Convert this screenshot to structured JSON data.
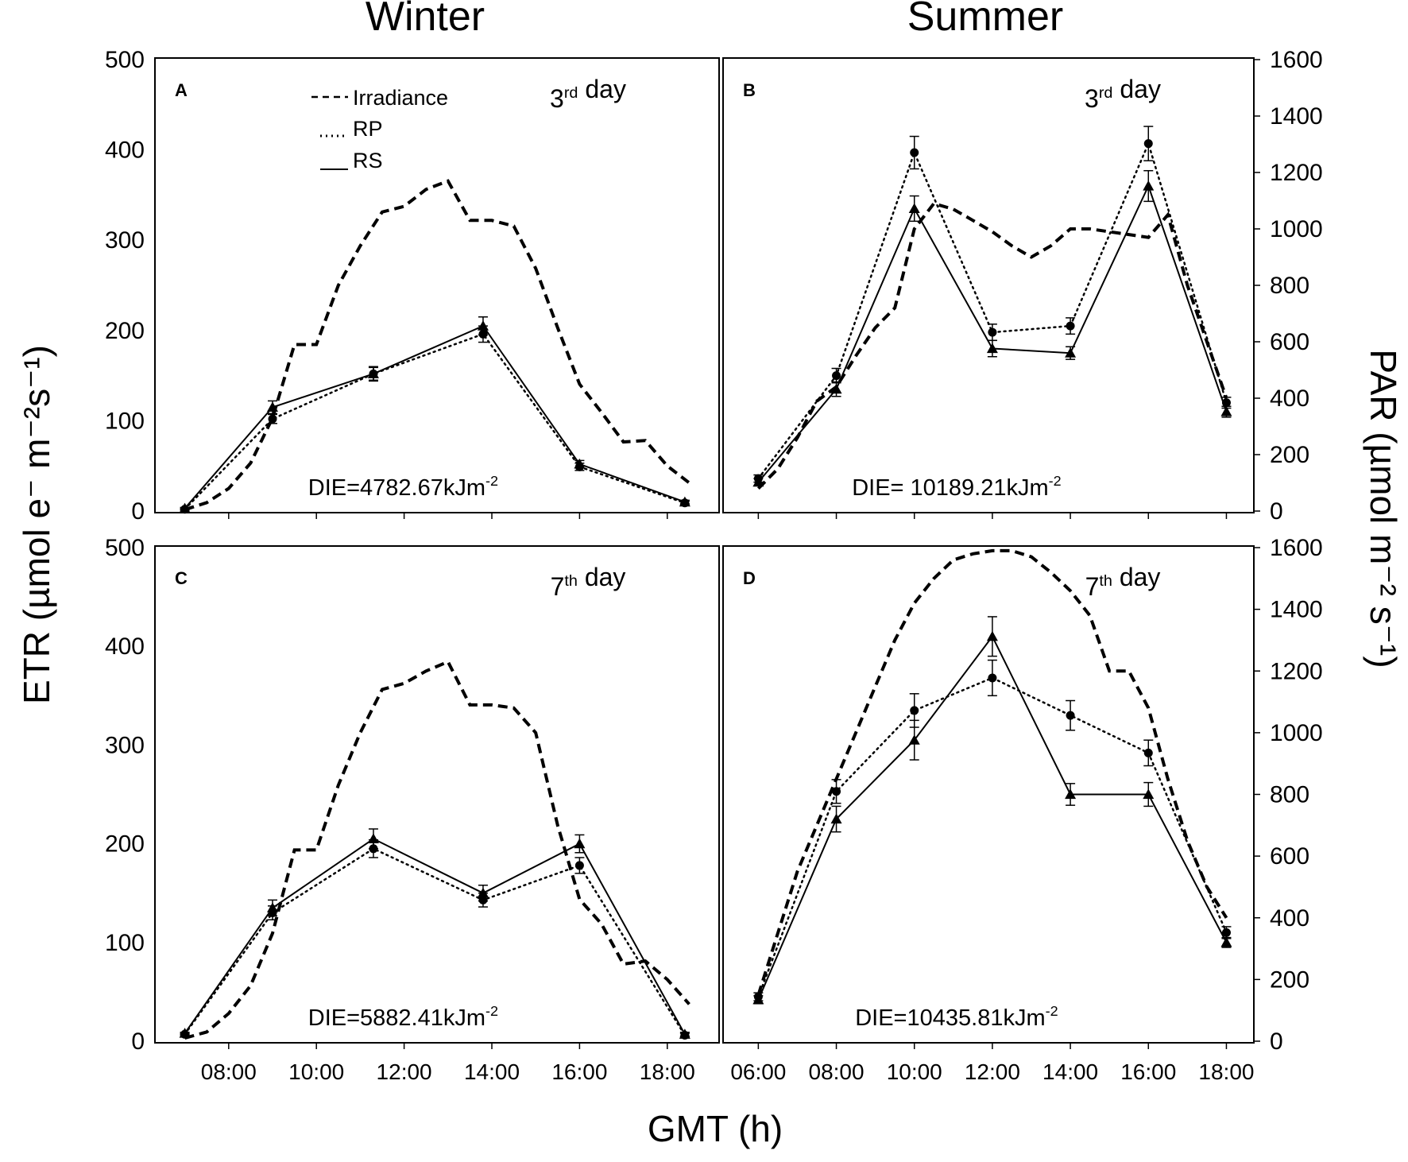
{
  "figure": {
    "column_titles": [
      "Winter",
      "Summer"
    ],
    "xlabel": "GMT (h)",
    "ylabel_left": "ETR (µmol e⁻ m⁻²s⁻¹)",
    "ylabel_right": "PAR (µmol m⁻² s⁻¹)"
  },
  "legend": {
    "items": [
      {
        "label": "Irradiance",
        "style": "dashed"
      },
      {
        "label": "RP",
        "style": "dotted"
      },
      {
        "label": "RS",
        "style": "solid"
      }
    ]
  },
  "chart_data": [
    {
      "type": "line",
      "panel": "A",
      "day_label": "3rd day",
      "die_label": "DIE=4782.67kJm-2",
      "x_ticks": [
        "08:00",
        "10:00",
        "12:00",
        "14:00",
        "16:00",
        "18:00"
      ],
      "xlim": [
        6.5,
        19.0
      ],
      "ylim": [
        0,
        500
      ],
      "y2lim": [
        0,
        1600
      ],
      "y_ticks": [
        0,
        100,
        200,
        300,
        400,
        500
      ],
      "y2_ticks": [
        0,
        200,
        400,
        600,
        800,
        1000,
        1200,
        1400,
        1600
      ],
      "series": [
        {
          "name": "RS",
          "axis": "left",
          "marker": "triangle",
          "x": [
            7.0,
            9.0,
            11.3,
            13.8,
            16.0,
            18.4
          ],
          "y": [
            3,
            115,
            152,
            205,
            52,
            10
          ],
          "err": [
            1,
            7,
            8,
            10,
            4,
            2
          ]
        },
        {
          "name": "RP",
          "axis": "left",
          "marker": "circle",
          "x": [
            7.0,
            9.0,
            11.3,
            13.8,
            16.0,
            18.4
          ],
          "y": [
            2,
            102,
            152,
            196,
            49,
            9
          ],
          "err": [
            1,
            5,
            7,
            9,
            4,
            2
          ]
        },
        {
          "name": "Irradiance",
          "axis": "right",
          "x": [
            7.0,
            7.5,
            8.0,
            8.5,
            9.0,
            9.5,
            10.0,
            10.5,
            11.0,
            11.5,
            12.0,
            12.5,
            13.0,
            13.5,
            14.0,
            14.5,
            15.0,
            15.5,
            16.0,
            16.5,
            17.0,
            17.5,
            18.0,
            18.5
          ],
          "y": [
            5,
            30,
            80,
            170,
            330,
            590,
            590,
            800,
            940,
            1060,
            1080,
            1140,
            1170,
            1030,
            1030,
            1010,
            860,
            650,
            450,
            350,
            245,
            250,
            160,
            100
          ]
        }
      ]
    },
    {
      "type": "line",
      "panel": "B",
      "day_label": "3rd day",
      "die_label": "DIE= 10189.21kJm-2",
      "x_ticks": [
        "06:00",
        "08:00",
        "10:00",
        "12:00",
        "14:00",
        "16:00",
        "18:00"
      ],
      "xlim": [
        5.3,
        18.5
      ],
      "ylim": [
        0,
        500
      ],
      "y2lim": [
        0,
        1600
      ],
      "y_ticks": [
        0,
        100,
        200,
        300,
        400,
        500
      ],
      "y2_ticks": [
        0,
        200,
        400,
        600,
        800,
        1000,
        1200,
        1400,
        1600
      ],
      "series": [
        {
          "name": "RS",
          "axis": "left",
          "marker": "triangle",
          "x": [
            6.0,
            8.0,
            10.0,
            12.0,
            14.0,
            16.0,
            18.0
          ],
          "y": [
            32,
            135,
            335,
            180,
            175,
            360,
            110
          ],
          "err": [
            4,
            8,
            14,
            9,
            7,
            17,
            6
          ]
        },
        {
          "name": "RP",
          "axis": "left",
          "marker": "circle",
          "x": [
            6.0,
            8.0,
            10.0,
            12.0,
            14.0,
            16.0,
            18.0
          ],
          "y": [
            36,
            150,
            397,
            198,
            205,
            407,
            120
          ],
          "err": [
            4,
            8,
            18,
            9,
            9,
            19,
            6
          ]
        },
        {
          "name": "Irradiance",
          "axis": "right",
          "x": [
            6.0,
            6.5,
            7.0,
            7.5,
            8.0,
            8.5,
            9.0,
            9.5,
            10.0,
            10.5,
            11.0,
            11.5,
            12.0,
            12.5,
            13.0,
            13.5,
            14.0,
            14.5,
            15.0,
            15.5,
            16.0,
            16.5,
            17.0,
            17.5,
            18.0
          ],
          "y": [
            80,
            150,
            260,
            390,
            440,
            550,
            650,
            720,
            1000,
            1090,
            1070,
            1030,
            990,
            940,
            900,
            940,
            1000,
            1000,
            990,
            980,
            970,
            1050,
            800,
            600,
            400
          ]
        }
      ]
    },
    {
      "type": "line",
      "panel": "C",
      "day_label": "7th day",
      "die_label": "DIE=5882.41kJm-2",
      "x_ticks": [
        "08:00",
        "10:00",
        "12:00",
        "14:00",
        "16:00",
        "18:00"
      ],
      "xlim": [
        6.5,
        19.0
      ],
      "ylim": [
        0,
        500
      ],
      "y2lim": [
        0,
        1600
      ],
      "y_ticks": [
        0,
        100,
        200,
        300,
        400,
        500
      ],
      "y2_ticks": [
        0,
        200,
        400,
        600,
        800,
        1000,
        1200,
        1400,
        1600
      ],
      "series": [
        {
          "name": "RS",
          "axis": "left",
          "marker": "triangle",
          "x": [
            7.0,
            9.0,
            11.3,
            13.8,
            16.0,
            18.4
          ],
          "y": [
            8,
            135,
            205,
            150,
            200,
            7
          ],
          "err": [
            1,
            8,
            10,
            8,
            9,
            2
          ]
        },
        {
          "name": "RP",
          "axis": "left",
          "marker": "circle",
          "x": [
            7.0,
            9.0,
            11.3,
            13.8,
            16.0,
            18.4
          ],
          "y": [
            7,
            130,
            195,
            143,
            178,
            6
          ],
          "err": [
            1,
            7,
            9,
            7,
            8,
            2
          ]
        },
        {
          "name": "Irradiance",
          "axis": "right",
          "x": [
            7.0,
            7.5,
            8.0,
            8.5,
            9.0,
            9.5,
            10.0,
            10.5,
            11.0,
            11.5,
            12.0,
            12.5,
            13.0,
            13.5,
            14.0,
            14.5,
            15.0,
            15.5,
            16.0,
            16.5,
            17.0,
            17.5,
            18.0,
            18.5
          ],
          "y": [
            10,
            30,
            90,
            180,
            350,
            620,
            620,
            830,
            1000,
            1140,
            1160,
            1200,
            1230,
            1090,
            1090,
            1080,
            1000,
            700,
            460,
            380,
            250,
            260,
            200,
            120
          ]
        }
      ]
    },
    {
      "type": "line",
      "panel": "D",
      "day_label": "7th day",
      "die_label": "DIE=10435.81kJm-2",
      "x_ticks": [
        "06:00",
        "08:00",
        "10:00",
        "12:00",
        "14:00",
        "16:00",
        "18:00"
      ],
      "xlim": [
        5.3,
        18.5
      ],
      "ylim": [
        0,
        500
      ],
      "y2lim": [
        0,
        1600
      ],
      "y_ticks": [
        0,
        100,
        200,
        300,
        400,
        500
      ],
      "y2_ticks": [
        0,
        200,
        400,
        600,
        800,
        1000,
        1200,
        1400,
        1600
      ],
      "series": [
        {
          "name": "RS",
          "axis": "left",
          "marker": "triangle",
          "x": [
            6.0,
            8.0,
            10.0,
            12.0,
            14.0,
            16.0,
            18.0
          ],
          "y": [
            42,
            225,
            305,
            410,
            250,
            250,
            100
          ],
          "err": [
            4,
            13,
            20,
            20,
            11,
            12,
            5
          ]
        },
        {
          "name": "RP",
          "axis": "left",
          "marker": "circle",
          "x": [
            6.0,
            8.0,
            10.0,
            12.0,
            14.0,
            16.0,
            18.0
          ],
          "y": [
            45,
            253,
            335,
            368,
            330,
            292,
            110
          ],
          "err": [
            4,
            12,
            17,
            18,
            15,
            13,
            6
          ]
        },
        {
          "name": "Irradiance",
          "axis": "right",
          "x": [
            6.0,
            6.5,
            7.0,
            7.5,
            8.0,
            8.5,
            9.0,
            9.5,
            10.0,
            10.5,
            11.0,
            11.5,
            12.0,
            12.5,
            13.0,
            13.5,
            14.0,
            14.5,
            15.0,
            15.5,
            16.0,
            16.5,
            17.0,
            17.5,
            18.0
          ],
          "y": [
            150,
            350,
            550,
            700,
            850,
            1000,
            1150,
            1300,
            1420,
            1500,
            1560,
            1580,
            1590,
            1590,
            1570,
            1520,
            1460,
            1380,
            1200,
            1200,
            1080,
            850,
            650,
            500,
            400
          ]
        }
      ]
    }
  ]
}
